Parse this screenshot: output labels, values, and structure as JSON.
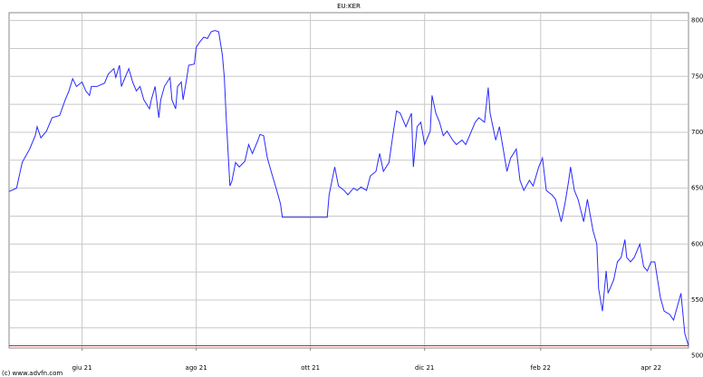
{
  "chart_data": {
    "type": "line",
    "title": "EU:KER",
    "footer": "(c) www.advfn.com",
    "xlim": [
      0,
      363
    ],
    "xticks": [
      {
        "value": 39,
        "label": "giu 21"
      },
      {
        "value": 100,
        "label": "ago 21"
      },
      {
        "value": 161,
        "label": "ott 21"
      },
      {
        "value": 222,
        "label": "dic 21"
      },
      {
        "value": 284,
        "label": "feb 22"
      },
      {
        "value": 343,
        "label": "apr 22"
      }
    ],
    "ylim": [
      507,
      807
    ],
    "yticks": [
      500,
      550,
      600,
      650,
      700,
      750,
      800
    ],
    "yminorticks": [
      525,
      575,
      625,
      675,
      725,
      775
    ],
    "grid": true,
    "last_price": 509,
    "last_price_color": "#e02020",
    "series": [
      {
        "color": "#2a2aff",
        "x": [
          0,
          4,
          7,
          11,
          14,
          15,
          17,
          20,
          23,
          27,
          30,
          32,
          34,
          36,
          39,
          41,
          43,
          44,
          47,
          51,
          53,
          56,
          57,
          59,
          60,
          62,
          64,
          66,
          68,
          70,
          72,
          75,
          76,
          78,
          80,
          81,
          83,
          86,
          87,
          89,
          90,
          92,
          93,
          95,
          96,
          99,
          100,
          102,
          104,
          106,
          108,
          110,
          112,
          114,
          115,
          116,
          118,
          119,
          121,
          123,
          126,
          128,
          130,
          133,
          134,
          136,
          138,
          140,
          143,
          145,
          146,
          150,
          159,
          170,
          171,
          174,
          176,
          179,
          181,
          184,
          186,
          188,
          191,
          193,
          196,
          198,
          200,
          203,
          205,
          207,
          209,
          212,
          214,
          215,
          216,
          218,
          220,
          222,
          225,
          226,
          228,
          230,
          232,
          234,
          237,
          239,
          242,
          244,
          246,
          249,
          251,
          254,
          256,
          257,
          260,
          262,
          264,
          266,
          268,
          271,
          273,
          275,
          278,
          280,
          283,
          285,
          287,
          290,
          292,
          295,
          297,
          299,
          300,
          302,
          304,
          307,
          309,
          312,
          314,
          315,
          317,
          319,
          320,
          323,
          325,
          327,
          329,
          330,
          332,
          334,
          337,
          339,
          341,
          343,
          345,
          348,
          350,
          353,
          355,
          357,
          359,
          361,
          363
        ],
        "values": [
          647,
          650,
          673,
          685,
          697,
          705,
          695,
          701,
          713,
          715,
          729,
          737,
          748,
          741,
          745,
          737,
          733,
          741,
          741,
          744,
          752,
          757,
          749,
          760,
          741,
          749,
          757,
          745,
          737,
          741,
          729,
          721,
          729,
          741,
          713,
          729,
          741,
          749,
          729,
          721,
          741,
          745,
          729,
          749,
          760,
          761,
          776,
          781,
          785,
          784,
          790,
          791,
          790,
          769,
          749,
          713,
          652,
          656,
          673,
          669,
          674,
          689,
          681,
          693,
          698,
          697,
          677,
          665,
          648,
          636,
          624,
          624,
          624,
          624,
          644,
          669,
          652,
          648,
          644,
          650,
          648,
          651,
          648,
          661,
          665,
          681,
          665,
          673,
          697,
          719,
          717,
          705,
          713,
          717,
          669,
          705,
          709,
          689,
          701,
          733,
          717,
          709,
          697,
          701,
          693,
          689,
          693,
          689,
          697,
          709,
          713,
          709,
          740,
          717,
          693,
          705,
          685,
          665,
          677,
          685,
          657,
          648,
          657,
          652,
          669,
          677,
          648,
          644,
          640,
          620,
          636,
          657,
          669,
          648,
          640,
          620,
          640,
          612,
          600,
          560,
          540,
          576,
          556,
          568,
          584,
          588,
          604,
          588,
          584,
          588,
          600,
          580,
          576,
          584,
          584,
          552,
          540,
          537,
          532,
          544,
          556,
          520,
          509
        ]
      }
    ]
  }
}
